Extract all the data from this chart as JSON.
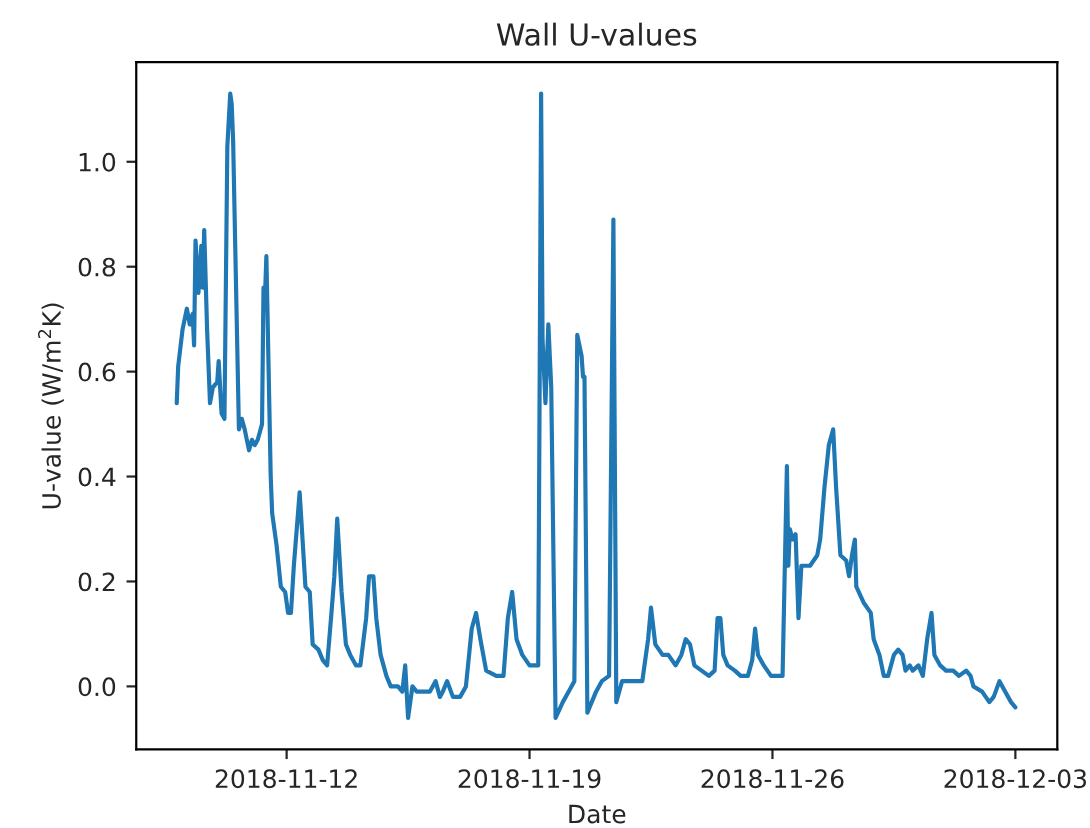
{
  "chart_data": {
    "type": "line",
    "title": "Wall U-values",
    "xlabel": "Date",
    "ylabel": "U-value (W/m$^{2}$K)",
    "x": [
      "2018-11-08T20:00",
      "2018-11-08T21:00",
      "2018-11-09T00:00",
      "2018-11-09T03:00",
      "2018-11-09T05:00",
      "2018-11-09T07:00",
      "2018-11-09T08:00",
      "2018-11-09T09:00",
      "2018-11-09T11:00",
      "2018-11-09T13:00",
      "2018-11-09T14:00",
      "2018-11-09T15:00",
      "2018-11-09T17:00",
      "2018-11-09T19:00",
      "2018-11-09T21:00",
      "2018-11-10T00:00",
      "2018-11-10T01:00",
      "2018-11-10T03:00",
      "2018-11-10T05:00",
      "2018-11-10T07:00",
      "2018-11-10T09:00",
      "2018-11-10T10:00",
      "2018-11-10T11:00",
      "2018-11-10T15:00",
      "2018-11-10T17:00",
      "2018-11-10T19:00",
      "2018-11-10T22:00",
      "2018-11-11T00:00",
      "2018-11-11T02:00",
      "2018-11-11T04:00",
      "2018-11-11T07:00",
      "2018-11-11T08:00",
      "2018-11-11T09:00",
      "2018-11-11T10:00",
      "2018-11-11T13:00",
      "2018-11-11T14:00",
      "2018-11-11T17:00",
      "2018-11-11T20:00",
      "2018-11-11T23:00",
      "2018-11-12T01:00",
      "2018-11-12T03:00",
      "2018-11-12T05:00",
      "2018-11-12T09:00",
      "2018-11-12T11:00",
      "2018-11-12T13:00",
      "2018-11-12T16:00",
      "2018-11-12T18:00",
      "2018-11-12T22:00",
      "2018-11-13T01:00",
      "2018-11-13T04:00",
      "2018-11-13T07:00",
      "2018-11-13T09:00",
      "2018-11-13T11:00",
      "2018-11-13T14:00",
      "2018-11-13T17:00",
      "2018-11-13T20:00",
      "2018-11-14T00:00",
      "2018-11-14T03:00",
      "2018-11-14T07:00",
      "2018-11-14T09:00",
      "2018-11-14T12:00",
      "2018-11-14T14:00",
      "2018-11-14T17:00",
      "2018-11-14T21:00",
      "2018-11-15T00:00",
      "2018-11-15T05:00",
      "2018-11-15T08:00",
      "2018-11-15T10:00",
      "2018-11-15T12:00",
      "2018-11-15T15:00",
      "2018-11-15T18:00",
      "2018-11-15T23:00",
      "2018-11-16T03:00",
      "2018-11-16T07:00",
      "2018-11-16T10:00",
      "2018-11-16T12:00",
      "2018-11-16T15:00",
      "2018-11-16T19:00",
      "2018-11-17T00:00",
      "2018-11-17T04:00",
      "2018-11-17T08:00",
      "2018-11-17T11:00",
      "2018-11-17T14:00",
      "2018-11-17T18:00",
      "2018-11-18T01:00",
      "2018-11-18T06:00",
      "2018-11-18T09:00",
      "2018-11-18T12:00",
      "2018-11-18T15:00",
      "2018-11-18T19:00",
      "2018-11-19T00:00",
      "2018-11-19T04:00",
      "2018-11-19T06:00",
      "2018-11-19T08:00",
      "2018-11-19T09:00",
      "2018-11-19T11:00",
      "2018-11-19T13:00",
      "2018-11-19T15:00",
      "2018-11-19T18:00",
      "2018-11-19T23:00",
      "2018-11-20T03:00",
      "2018-11-20T07:00",
      "2018-11-20T09:00",
      "2018-11-20T12:00",
      "2018-11-20T13:00",
      "2018-11-20T14:00",
      "2018-11-20T16:00",
      "2018-11-20T22:00",
      "2018-11-21T02:00",
      "2018-11-21T07:00",
      "2018-11-21T10:00",
      "2018-11-21T12:00",
      "2018-11-21T16:00",
      "2018-11-21T23:00",
      "2018-11-22T06:00",
      "2018-11-22T10:00",
      "2018-11-22T12:00",
      "2018-11-22T15:00",
      "2018-11-22T20:00",
      "2018-11-23T00:00",
      "2018-11-23T05:00",
      "2018-11-23T09:00",
      "2018-11-23T12:00",
      "2018-11-23T15:00",
      "2018-11-23T18:00",
      "2018-11-23T23:00",
      "2018-11-24T04:00",
      "2018-11-24T08:00",
      "2018-11-24T10:00",
      "2018-11-24T12:00",
      "2018-11-24T14:00",
      "2018-11-24T17:00",
      "2018-11-24T22:00",
      "2018-11-25T02:00",
      "2018-11-25T07:00",
      "2018-11-25T10:00",
      "2018-11-25T12:00",
      "2018-11-25T14:00",
      "2018-11-25T18:00",
      "2018-11-25T23:00",
      "2018-11-26T04:00",
      "2018-11-26T07:00",
      "2018-11-26T10:00",
      "2018-11-26T11:00",
      "2018-11-26T12:00",
      "2018-11-26T14:00",
      "2018-11-26T16:00",
      "2018-11-26T18:00",
      "2018-11-26T20:00",
      "2018-11-26T22:00",
      "2018-11-27T02:00",
      "2018-11-27T07:00",
      "2018-11-27T09:00",
      "2018-11-27T12:00",
      "2018-11-27T15:00",
      "2018-11-27T18:00",
      "2018-11-27T20:00",
      "2018-11-27T23:00",
      "2018-11-28T03:00",
      "2018-11-28T05:00",
      "2018-11-28T07:00",
      "2018-11-28T09:00",
      "2018-11-28T10:00",
      "2018-11-28T15:00",
      "2018-11-28T20:00",
      "2018-11-28T22:00",
      "2018-11-29T02:00",
      "2018-11-29T05:00",
      "2018-11-29T08:00",
      "2018-11-29T12:00",
      "2018-11-29T15:00",
      "2018-11-29T18:00",
      "2018-11-29T20:00",
      "2018-11-29T23:00",
      "2018-11-30T01:00",
      "2018-11-30T05:00",
      "2018-11-30T08:00",
      "2018-11-30T11:00",
      "2018-11-30T14:00",
      "2018-11-30T16:00",
      "2018-11-30T20:00",
      "2018-12-01T00:00",
      "2018-12-01T05:00",
      "2018-12-01T09:00",
      "2018-12-01T14:00",
      "2018-12-01T17:00",
      "2018-12-01T19:00",
      "2018-12-02T01:00",
      "2018-12-02T06:00",
      "2018-12-02T09:00",
      "2018-12-02T13:00",
      "2018-12-02T17:00",
      "2018-12-02T21:00",
      "2018-12-03T00:00"
    ],
    "series": [
      {
        "color": "#1f77b4",
        "values": [
          0.54,
          0.61,
          0.68,
          0.72,
          0.69,
          0.71,
          0.65,
          0.85,
          0.75,
          0.84,
          0.76,
          0.87,
          0.68,
          0.54,
          0.57,
          0.58,
          0.62,
          0.52,
          0.51,
          1.03,
          1.13,
          1.11,
          1.04,
          0.49,
          0.51,
          0.49,
          0.45,
          0.47,
          0.46,
          0.47,
          0.5,
          0.76,
          0.74,
          0.82,
          0.4,
          0.33,
          0.27,
          0.19,
          0.18,
          0.14,
          0.14,
          0.23,
          0.37,
          0.28,
          0.19,
          0.18,
          0.08,
          0.07,
          0.05,
          0.04,
          0.14,
          0.21,
          0.32,
          0.18,
          0.08,
          0.06,
          0.04,
          0.04,
          0.13,
          0.21,
          0.21,
          0.13,
          0.06,
          0.02,
          0.0,
          0.0,
          -0.01,
          0.04,
          -0.06,
          0.0,
          -0.01,
          -0.01,
          -0.01,
          0.01,
          -0.02,
          -0.01,
          0.01,
          -0.02,
          -0.02,
          0.0,
          0.11,
          0.14,
          0.09,
          0.03,
          0.02,
          0.02,
          0.13,
          0.18,
          0.09,
          0.06,
          0.04,
          0.04,
          0.04,
          1.13,
          0.66,
          0.54,
          0.69,
          0.57,
          -0.06,
          -0.03,
          -0.01,
          0.01,
          0.67,
          0.63,
          0.59,
          0.59,
          -0.05,
          -0.01,
          0.01,
          0.02,
          0.89,
          -0.03,
          0.01,
          0.01,
          0.01,
          0.09,
          0.15,
          0.08,
          0.06,
          0.06,
          0.04,
          0.06,
          0.09,
          0.08,
          0.04,
          0.03,
          0.02,
          0.03,
          0.13,
          0.13,
          0.06,
          0.04,
          0.03,
          0.02,
          0.02,
          0.05,
          0.11,
          0.06,
          0.04,
          0.02,
          0.02,
          0.02,
          0.42,
          0.23,
          0.3,
          0.28,
          0.29,
          0.13,
          0.23,
          0.23,
          0.23,
          0.25,
          0.28,
          0.38,
          0.46,
          0.49,
          0.38,
          0.25,
          0.24,
          0.21,
          0.25,
          0.28,
          0.19,
          0.16,
          0.14,
          0.09,
          0.06,
          0.02,
          0.02,
          0.06,
          0.07,
          0.06,
          0.03,
          0.04,
          0.03,
          0.04,
          0.02,
          0.09,
          0.14,
          0.06,
          0.04,
          0.03,
          0.03,
          0.02,
          0.03,
          0.02,
          0.0,
          -0.01,
          -0.03,
          -0.02,
          0.01,
          -0.01,
          -0.03,
          -0.04
        ]
      }
    ],
    "xlim": [
      "2018-11-07T16:00",
      "2018-12-04T05:00"
    ],
    "xticks": [
      {
        "value": "2018-11-12",
        "label": "2018-11-12"
      },
      {
        "value": "2018-11-19",
        "label": "2018-11-19"
      },
      {
        "value": "2018-11-26",
        "label": "2018-11-26"
      },
      {
        "value": "2018-12-03",
        "label": "2018-12-03"
      }
    ],
    "ylim": [
      -0.12,
      1.19
    ],
    "yticks": [
      {
        "value": 0,
        "label": "0.0"
      },
      {
        "value": 0.2,
        "label": "0.2"
      },
      {
        "value": 0.4,
        "label": "0.4"
      },
      {
        "value": 0.6,
        "label": "0.6"
      },
      {
        "value": 0.8,
        "label": "0.8"
      },
      {
        "value": 1.0,
        "label": "1.0"
      }
    ],
    "grid": false
  }
}
